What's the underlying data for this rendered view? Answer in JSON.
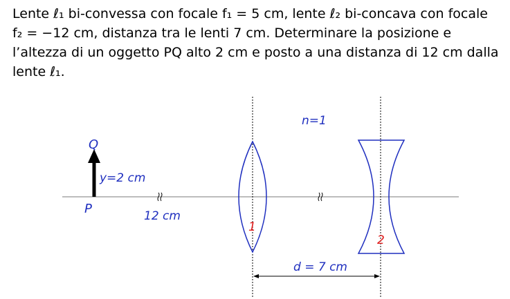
{
  "problem": {
    "line1": "Lente ℓ₁ bi-convessa con focale f₁ = 5 cm, lente ℓ₂ bi-concava con focale",
    "line2": "f₂ = −12 cm, distanza tra le lenti 7 cm. Determinare la posizione e",
    "line3": "l’altezza di un oggetto PQ alto 2 cm e posto a una distanza di 12 cm dalla",
    "line4": "lente ℓ₁."
  },
  "figure": {
    "label_Q": "Q",
    "label_P": "P",
    "label_height": "y=2 cm",
    "label_distance": "12 cm",
    "label_index": "n=1",
    "label_lens1": "1",
    "label_lens2": "2",
    "label_separation": "d = 7 cm",
    "colors": {
      "lens": "#1f2fbf",
      "labels": "#1f2fbf",
      "lens_numbers": "#e01b1b",
      "axis": "#7a7a7a",
      "object_arrow": "#000000"
    }
  }
}
